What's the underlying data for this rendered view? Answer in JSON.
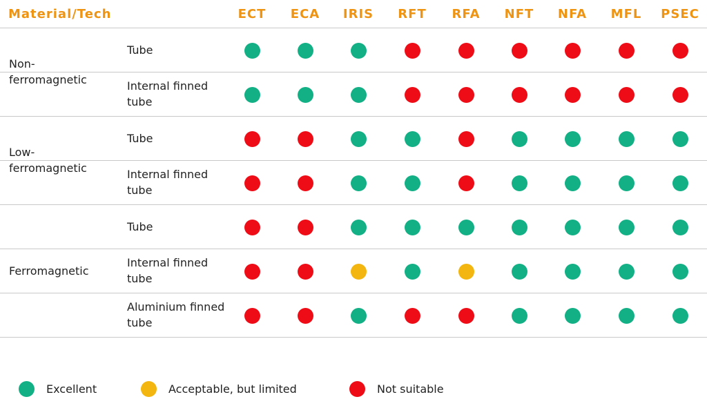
{
  "header": {
    "title": "Material/Tech",
    "columns": [
      "ECT",
      "ECA",
      "IRIS",
      "RFT",
      "RFA",
      "NFT",
      "NFA",
      "MFL",
      "PSEC"
    ]
  },
  "groups": [
    {
      "label": "Non-ferromagnetic",
      "rows": [
        {
          "label": "Tube",
          "cells": [
            0,
            0,
            0,
            2,
            2,
            2,
            2,
            2,
            2
          ]
        },
        {
          "label": "Internal finned tube",
          "cells": [
            0,
            0,
            0,
            2,
            2,
            2,
            2,
            2,
            2
          ]
        }
      ]
    },
    {
      "label": "Low-ferromagnetic",
      "rows": [
        {
          "label": "Tube",
          "cells": [
            2,
            2,
            0,
            0,
            2,
            0,
            0,
            0,
            0
          ]
        },
        {
          "label": "Internal finned tube",
          "cells": [
            2,
            2,
            0,
            0,
            2,
            0,
            0,
            0,
            0
          ]
        }
      ]
    },
    {
      "label": "Ferromagnetic",
      "rows": [
        {
          "label": "Tube",
          "cells": [
            2,
            2,
            0,
            0,
            0,
            0,
            0,
            0,
            0
          ]
        },
        {
          "label": "Internal finned tube",
          "cells": [
            2,
            2,
            1,
            0,
            1,
            0,
            0,
            0,
            0
          ]
        },
        {
          "label": "Aluminium finned tube",
          "cells": [
            2,
            2,
            0,
            2,
            2,
            0,
            0,
            0,
            0
          ]
        }
      ]
    }
  ],
  "legend": [
    {
      "label": "Excellent",
      "color": "#13b085"
    },
    {
      "label": "Acceptable, but limited",
      "color": "#f3b610"
    },
    {
      "label": "Not suitable",
      "color": "#ee0c16"
    }
  ]
}
